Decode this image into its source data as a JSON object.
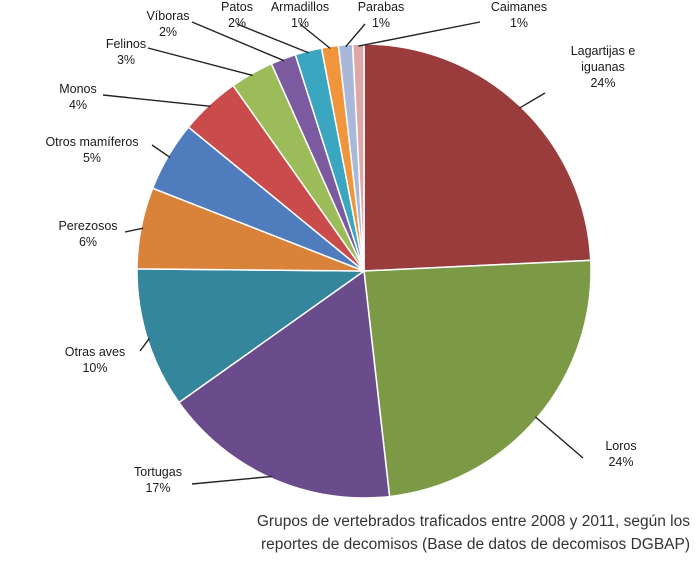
{
  "chart_data": {
    "type": "pie",
    "title": "",
    "caption": [
      "Grupos de vertebrados traficados entre 2008 y 2011, según los",
      "reportes de decomisos (Base de datos de decomisos DGBAP)"
    ],
    "slices": [
      {
        "label": [
          "Lagartijas e",
          "iguanas"
        ],
        "pct_label": "24%",
        "value": 24.3,
        "color": "#9b3c3c"
      },
      {
        "label": [
          "Loros"
        ],
        "pct_label": "24%",
        "value": 24.0,
        "color": "#7c9a45"
      },
      {
        "label": [
          "Tortugas"
        ],
        "pct_label": "17%",
        "value": 17.0,
        "color": "#6a4c8c"
      },
      {
        "label": [
          "Otras aves"
        ],
        "pct_label": "10%",
        "value": 10.0,
        "color": "#34869c"
      },
      {
        "label": [
          "Perezosos"
        ],
        "pct_label": "6%",
        "value": 5.8,
        "color": "#d9823a"
      },
      {
        "label": [
          "Otros mamíferos"
        ],
        "pct_label": "5%",
        "value": 5.0,
        "color": "#4f7cbc"
      },
      {
        "label": [
          "Monos"
        ],
        "pct_label": "4%",
        "value": 4.3,
        "color": "#c94b4b"
      },
      {
        "label": [
          "Felinos"
        ],
        "pct_label": "3%",
        "value": 3.1,
        "color": "#9cbc5a"
      },
      {
        "label": [
          "Víboras"
        ],
        "pct_label": "2%",
        "value": 1.8,
        "color": "#7b5aa0"
      },
      {
        "label": [
          "Patos"
        ],
        "pct_label": "2%",
        "value": 1.9,
        "color": "#3aa6c0"
      },
      {
        "label": [
          "Armadillos"
        ],
        "pct_label": "1%",
        "value": 1.2,
        "color": "#f0953c"
      },
      {
        "label": [
          "Parabas"
        ],
        "pct_label": "1%",
        "value": 1.0,
        "color": "#a9b8d8"
      },
      {
        "label": [
          "Caimanes"
        ],
        "pct_label": "1%",
        "value": 0.8,
        "color": "#dba7a7"
      }
    ]
  }
}
